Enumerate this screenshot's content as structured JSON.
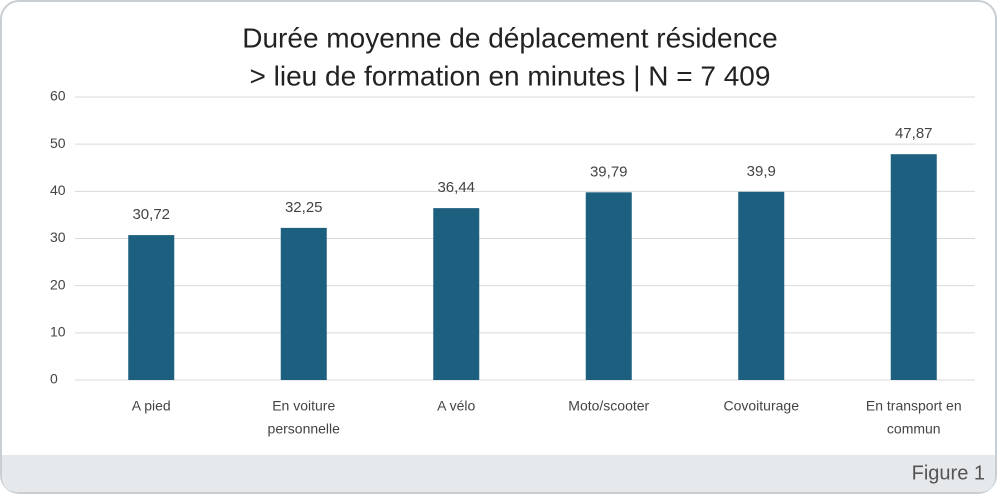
{
  "chart_data": {
    "type": "bar",
    "title": [
      "Durée moyenne de déplacement résidence",
      "> lieu de formation en minutes | N = 7 409"
    ],
    "categories": [
      [
        "A pied"
      ],
      [
        "En voiture",
        "personnelle"
      ],
      [
        "A vélo"
      ],
      [
        "Moto/scooter"
      ],
      [
        "Covoiturage"
      ],
      [
        "En transport en",
        "commun"
      ]
    ],
    "values": [
      30.72,
      32.25,
      36.44,
      39.79,
      39.9,
      47.87
    ],
    "value_labels": [
      "30,72",
      "32,25",
      "36,44",
      "39,79",
      "39,9",
      "47,87"
    ],
    "color": "#1c5f7e",
    "ylim": [
      0,
      60
    ],
    "yticks": [
      0,
      10,
      20,
      30,
      40,
      50,
      60
    ],
    "grid": true
  },
  "caption": "Figure 1"
}
